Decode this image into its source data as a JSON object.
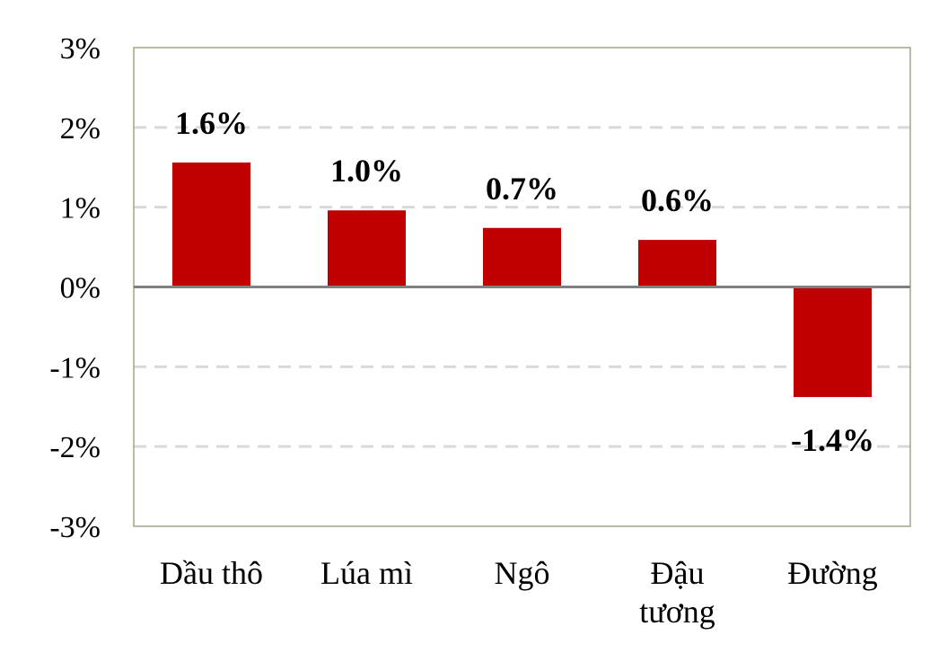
{
  "chart_data": {
    "type": "bar",
    "title": "",
    "xlabel": "",
    "ylabel": "",
    "ylim": [
      -3,
      3
    ],
    "y_ticks": [
      3,
      2,
      1,
      0,
      -1,
      -2,
      -3
    ],
    "y_tick_labels": [
      "3%",
      "2%",
      "1%",
      "0%",
      "-1%",
      "-2%",
      "-3%"
    ],
    "grid": "horizontal-dashed",
    "legend": "none",
    "bar_color": "#c00000",
    "categories": [
      [
        "Dầu thô"
      ],
      [
        "Lúa mì"
      ],
      [
        "Ngô"
      ],
      [
        "Đậu",
        "tương"
      ],
      [
        "Đường"
      ]
    ],
    "values": [
      1.56,
      0.96,
      0.74,
      0.59,
      -1.38
    ],
    "data_labels": [
      "1.6%",
      "1.0%",
      "0.7%",
      "0.6%",
      "-1.4%"
    ]
  }
}
